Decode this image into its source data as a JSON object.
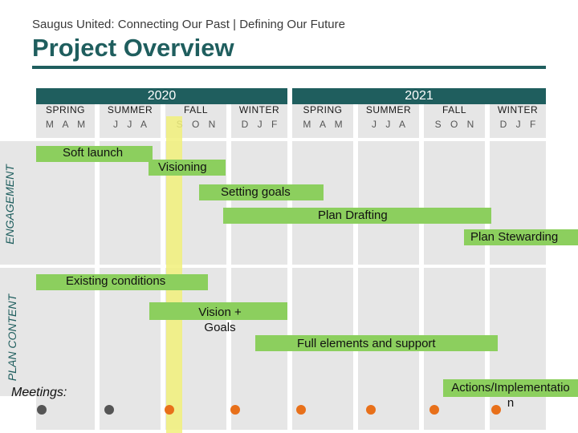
{
  "header": {
    "subtitle": "Saugus United: Connecting Our Past | Defining Our Future",
    "title": "Project Overview"
  },
  "years": [
    "2020",
    "2021"
  ],
  "seasons": [
    "SPRING",
    "SUMMER",
    "FALL",
    "WINTER",
    "SPRING",
    "SUMMER",
    "FALL",
    "WINTER"
  ],
  "months": [
    "M A M",
    "J J A",
    "S O N",
    "D J F",
    "M A M",
    "J J A",
    "S O N",
    "D J F"
  ],
  "rows": {
    "engagement": "ENGAGEMENT",
    "plan_content": "PLAN CONTENT"
  },
  "tasks": {
    "soft_launch": "Soft launch",
    "visioning": "Visioning",
    "setting_goals": "Setting goals",
    "plan_drafting": "Plan Drafting",
    "plan_stewarding": "Plan Stewarding",
    "existing_conditions": "Existing conditions",
    "vision_goals": "Vision + Goals",
    "full_elements": "Full elements and support",
    "actions": "Actions/Implementation"
  },
  "meetings_label": "Meetings:",
  "colors": {
    "accent": "#1f5e5e",
    "bar": "#8ccf5e",
    "highlight": "#f1f07a",
    "dot_past": "#555555",
    "dot_future": "#e8701a"
  },
  "meeting_dots": [
    "past",
    "past",
    "future",
    "future",
    "future",
    "future",
    "future",
    "future"
  ]
}
